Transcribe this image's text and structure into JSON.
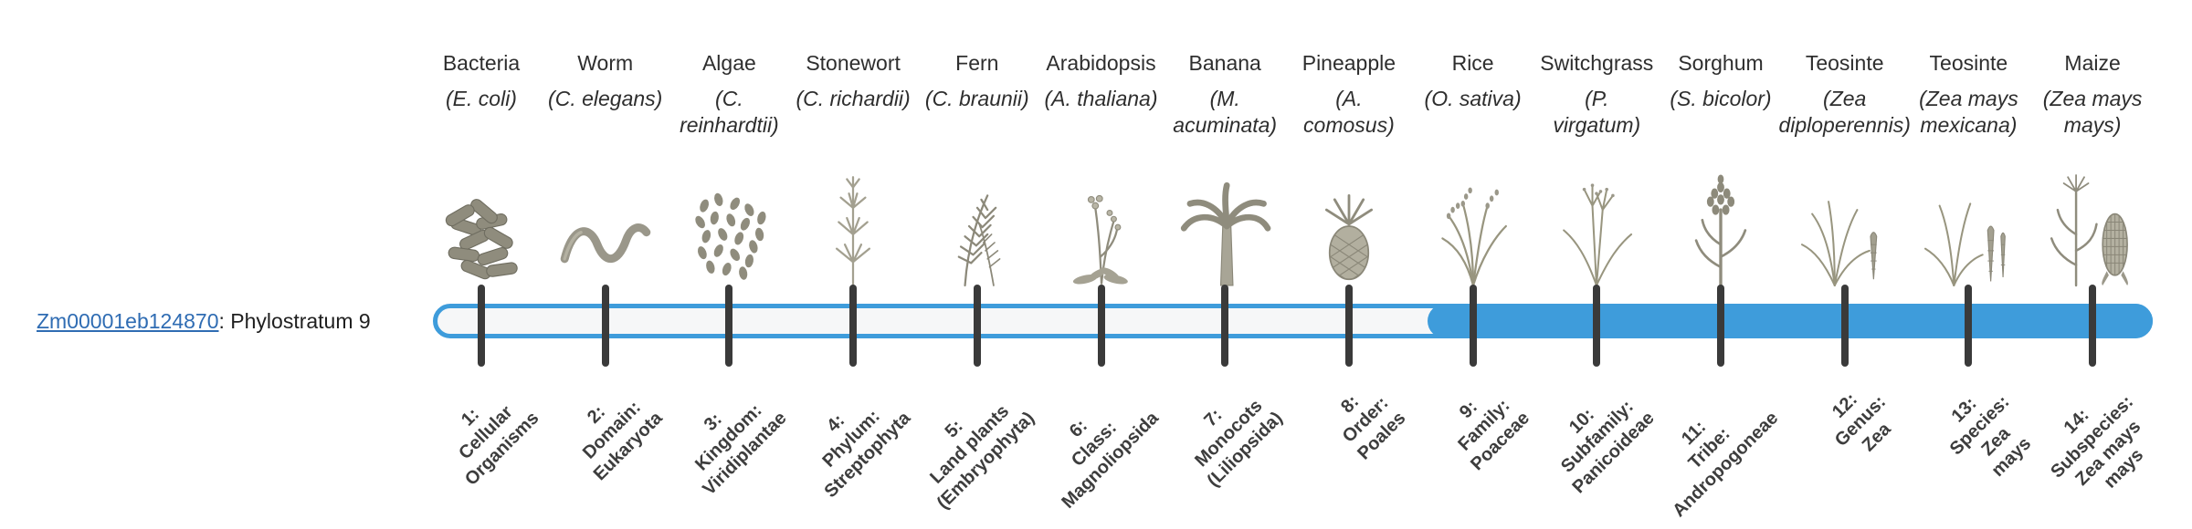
{
  "gene": {
    "id": "Zm00001eb124870",
    "suffix": ": Phylostratum 9",
    "phylostratum": 9
  },
  "colors": {
    "track_blue": "#3e9cdb",
    "track_background": "#f6f7f8",
    "tick": "#3a3a3a",
    "link": "#2f6cb3"
  },
  "organisms": [
    {
      "stratum": 1,
      "common": "Bacteria",
      "sci_lines": [
        "(E. coli)"
      ],
      "icon": "bacteria-illustration",
      "label_lines": [
        "1:",
        "Cellular",
        "Organisms"
      ]
    },
    {
      "stratum": 2,
      "common": "Worm",
      "sci_lines": [
        "(C. elegans)"
      ],
      "icon": "worm-illustration",
      "label_lines": [
        "2:",
        "Domain:",
        "Eukaryota"
      ]
    },
    {
      "stratum": 3,
      "common": "Algae",
      "sci_lines": [
        "(C.",
        "reinhardtii)"
      ],
      "icon": "algae-illustration",
      "label_lines": [
        "3:",
        "Kingdom:",
        "Viridiplantae"
      ]
    },
    {
      "stratum": 4,
      "common": "Stonewort",
      "sci_lines": [
        "(C. richardii)"
      ],
      "icon": "stonewort-illustration",
      "label_lines": [
        "4:",
        "Phylum:",
        "Streptophyta"
      ]
    },
    {
      "stratum": 5,
      "common": "Fern",
      "sci_lines": [
        "(C. braunii)"
      ],
      "icon": "fern-illustration",
      "label_lines": [
        "5:",
        "Land plants",
        "(Embryophyta)"
      ]
    },
    {
      "stratum": 6,
      "common": "Arabidopsis",
      "sci_lines": [
        "(A. thaliana)"
      ],
      "icon": "arabidopsis-illustration",
      "label_lines": [
        "6:",
        "Class:",
        "Magnoliopsida"
      ]
    },
    {
      "stratum": 7,
      "common": "Banana",
      "sci_lines": [
        "(M.",
        "acuminata)"
      ],
      "icon": "banana-illustration",
      "label_lines": [
        "7:",
        "Monocots",
        "(Liliopsida)"
      ]
    },
    {
      "stratum": 8,
      "common": "Pineapple",
      "sci_lines": [
        "(A.",
        "comosus)"
      ],
      "icon": "pineapple-illustration",
      "label_lines": [
        "8:",
        "Order:",
        "Poales"
      ]
    },
    {
      "stratum": 9,
      "common": "Rice",
      "sci_lines": [
        "(O. sativa)"
      ],
      "icon": "rice-illustration",
      "label_lines": [
        "9:",
        "Family:",
        "Poaceae"
      ]
    },
    {
      "stratum": 10,
      "common": "Switchgrass",
      "sci_lines": [
        "(P.",
        "virgatum)"
      ],
      "icon": "switchgrass-illustration",
      "label_lines": [
        "10:",
        "Subfamily:",
        "Panicoideae"
      ]
    },
    {
      "stratum": 11,
      "common": "Sorghum",
      "sci_lines": [
        "(S. bicolor)"
      ],
      "icon": "sorghum-illustration",
      "label_lines": [
        "11:",
        "Tribe:",
        "Andropogoneae"
      ]
    },
    {
      "stratum": 12,
      "common": "Teosinte",
      "sci_lines": [
        "(Zea",
        "diploperennis)"
      ],
      "icon": "teosinte-diploperennis-illustration",
      "label_lines": [
        "12:",
        "Genus:",
        "Zea"
      ]
    },
    {
      "stratum": 13,
      "common": "Teosinte",
      "sci_lines": [
        "(Zea mays",
        "mexicana)"
      ],
      "icon": "teosinte-mexicana-illustration",
      "label_lines": [
        "13:",
        "Species:",
        "Zea",
        "mays"
      ]
    },
    {
      "stratum": 14,
      "common": "Maize",
      "sci_lines": [
        "(Zea mays",
        "mays)"
      ],
      "icon": "maize-illustration",
      "label_lines": [
        "14:",
        "Subspecies:",
        "Zea mays",
        "mays"
      ]
    }
  ]
}
